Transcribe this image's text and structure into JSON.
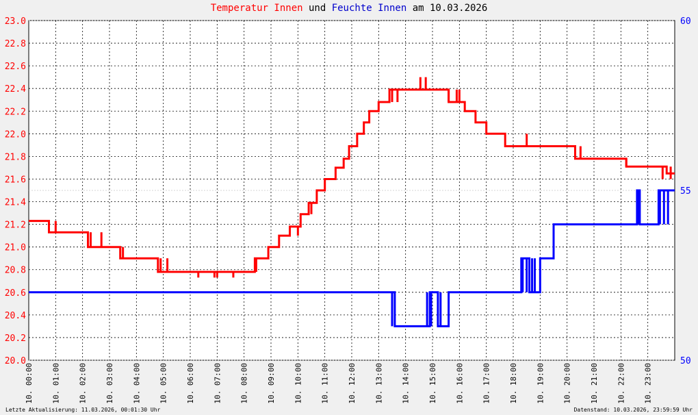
{
  "title": {
    "part1": "Temperatur Innen",
    "part2": " und ",
    "part3": "Feuchte Innen",
    "part4": " am 10.03.2026"
  },
  "colors": {
    "temp": "#ff0000",
    "hum": "#0000ff",
    "grid": "#000000",
    "axis_bg": "#ffffff",
    "page_bg": "#f0f0f0"
  },
  "footer_left": "Letzte Aktualisierung: 11.03.2026, 00:01:30 Uhr",
  "footer_right": "Datenstand: 10.03.2026, 23:59:59 Uhr",
  "chart_data": {
    "type": "line",
    "title": "Temperatur Innen und Feuchte Innen am 10.03.2026",
    "x_ticks": [
      "10. 00:00",
      "10. 01:00",
      "10. 02:00",
      "10. 03:00",
      "10. 04:00",
      "10. 05:00",
      "10. 06:00",
      "10. 07:00",
      "10. 08:00",
      "10. 09:00",
      "10. 10:00",
      "10. 11:00",
      "10. 12:00",
      "10. 13:00",
      "10. 14:00",
      "10. 15:00",
      "10. 16:00",
      "10. 17:00",
      "10. 18:00",
      "10. 19:00",
      "10. 20:00",
      "10. 21:00",
      "10. 22:00",
      "10. 23:00"
    ],
    "xlim": [
      0,
      24
    ],
    "y_left": {
      "min": 20.0,
      "max": 23.0,
      "step": 0.2,
      "ticks": [
        "20.0",
        "20.2",
        "20.4",
        "20.6",
        "20.8",
        "21.0",
        "21.2",
        "21.4",
        "21.6",
        "21.8",
        "22.0",
        "22.2",
        "22.4",
        "22.6",
        "22.8",
        "23.0"
      ]
    },
    "y_right": {
      "min": 50,
      "max": 60,
      "ticks": [
        "50",
        "55",
        "60"
      ]
    },
    "grid": true,
    "series": [
      {
        "axis": "left",
        "color": "#ff0000",
        "x": [
          0.0,
          0.75,
          0.75,
          1.2,
          1.2,
          2.2,
          2.2,
          3.4,
          3.4,
          4.8,
          4.8,
          5.6,
          5.6,
          7.3,
          7.3,
          8.4,
          8.4,
          8.9,
          8.9,
          9.3,
          9.3,
          9.7,
          9.7,
          10.1,
          10.1,
          10.4,
          10.4,
          10.7,
          10.7,
          11.0,
          11.0,
          11.4,
          11.4,
          11.7,
          11.7,
          11.9,
          11.9,
          12.2,
          12.2,
          12.45,
          12.45,
          12.65,
          12.65,
          13.0,
          13.0,
          13.4,
          13.4,
          13.7,
          13.7,
          15.6,
          15.6,
          15.8,
          15.8,
          16.2,
          16.2,
          16.6,
          16.6,
          17.0,
          17.0,
          17.7,
          17.7,
          18.4,
          18.4,
          20.3,
          20.3,
          22.2,
          22.2,
          23.7,
          23.7,
          24.0
        ],
        "values": [
          21.23,
          21.23,
          21.13,
          21.13,
          21.13,
          21.13,
          21.0,
          21.0,
          20.9,
          20.9,
          20.78,
          20.78,
          20.78,
          20.78,
          20.78,
          20.78,
          20.9,
          20.9,
          21.0,
          21.0,
          21.1,
          21.1,
          21.18,
          21.18,
          21.29,
          21.29,
          21.39,
          21.39,
          21.5,
          21.5,
          21.6,
          21.6,
          21.7,
          21.7,
          21.78,
          21.78,
          21.89,
          21.89,
          22.0,
          22.0,
          22.1,
          22.1,
          22.2,
          22.2,
          22.28,
          22.28,
          22.39,
          22.39,
          22.39,
          22.39,
          22.28,
          22.28,
          22.28,
          22.28,
          22.2,
          22.2,
          22.1,
          22.1,
          22.0,
          22.0,
          21.89,
          21.89,
          21.89,
          21.89,
          21.78,
          21.78,
          21.71,
          21.71,
          21.65,
          21.65
        ]
      },
      {
        "axis": "right",
        "color": "#0000ff",
        "x": [
          0.0,
          13.6,
          13.6,
          13.75,
          13.75,
          14.9,
          14.9,
          15.2,
          15.2,
          15.6,
          15.6,
          15.75,
          15.75,
          18.3,
          18.3,
          18.6,
          18.6,
          19.0,
          19.0,
          19.5,
          19.5,
          22.6,
          22.6,
          22.7,
          22.7,
          23.4,
          23.4,
          24.0
        ],
        "values": [
          52.0,
          52.0,
          51.0,
          51.0,
          51.0,
          51.0,
          52.0,
          52.0,
          51.0,
          51.0,
          52.0,
          52.0,
          52.0,
          52.0,
          53.0,
          53.0,
          52.0,
          52.0,
          53.0,
          53.0,
          54.0,
          54.0,
          55.0,
          55.0,
          54.0,
          54.0,
          55.0,
          55.0
        ]
      }
    ],
    "markers": {
      "temp_spikes": [
        [
          0.75,
          21.13,
          21.23
        ],
        [
          1.0,
          21.13,
          21.23
        ],
        [
          2.3,
          21.0,
          21.13
        ],
        [
          2.7,
          21.0,
          21.13
        ],
        [
          3.5,
          20.9,
          21.0
        ],
        [
          4.9,
          20.78,
          20.9
        ],
        [
          5.15,
          20.78,
          20.9
        ],
        [
          6.3,
          20.73,
          20.78
        ],
        [
          6.9,
          20.73,
          20.78
        ],
        [
          7.0,
          20.73,
          20.78
        ],
        [
          7.6,
          20.73,
          20.78
        ],
        [
          8.45,
          20.78,
          20.9
        ],
        [
          10.0,
          21.1,
          21.18
        ],
        [
          10.5,
          21.29,
          21.39
        ],
        [
          13.5,
          22.28,
          22.39
        ],
        [
          13.7,
          22.28,
          22.39
        ],
        [
          14.55,
          22.39,
          22.5
        ],
        [
          14.75,
          22.39,
          22.5
        ],
        [
          15.6,
          22.28,
          22.39
        ],
        [
          15.9,
          22.28,
          22.39
        ],
        [
          16.0,
          22.28,
          22.39
        ],
        [
          18.5,
          21.89,
          22.0
        ],
        [
          20.3,
          21.78,
          21.89
        ],
        [
          20.5,
          21.78,
          21.89
        ],
        [
          22.2,
          21.71,
          21.78
        ],
        [
          23.55,
          21.6,
          21.71
        ],
        [
          23.85,
          21.6,
          21.71
        ]
      ],
      "hum_spikes": [
        [
          13.5,
          51.0,
          52.0
        ],
        [
          14.8,
          51.0,
          52.0
        ],
        [
          14.95,
          51.0,
          52.0
        ],
        [
          15.3,
          51.0,
          52.0
        ],
        [
          18.35,
          52.0,
          53.0
        ],
        [
          18.5,
          52.0,
          53.0
        ],
        [
          18.7,
          52.0,
          53.0
        ],
        [
          18.8,
          52.0,
          53.0
        ],
        [
          22.65,
          54.0,
          55.0
        ],
        [
          23.45,
          54.0,
          55.0
        ],
        [
          23.6,
          54.0,
          55.0
        ],
        [
          23.75,
          54.0,
          55.0
        ]
      ]
    }
  }
}
